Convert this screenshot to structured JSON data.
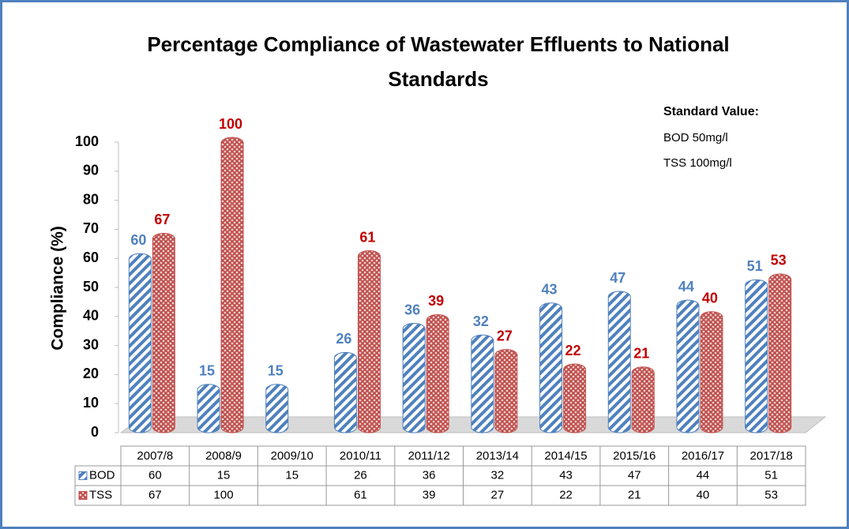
{
  "chart_data": {
    "type": "bar",
    "title": "Percentage Compliance of Wastewater Effluents to National Standards",
    "y_label": "Compliance (%)",
    "annotations": [
      "Standard Value:",
      "BOD 50mg/l",
      "TSS   100mg/l"
    ],
    "categories": [
      "2007/8",
      "2008/9",
      "2009/10",
      "2010/11",
      "2011/12",
      "2013/14",
      "2014/15",
      "2015/16",
      "2016/17",
      "2017/18"
    ],
    "series": [
      {
        "name": "BOD",
        "color": "#4f81bd",
        "label_color": "#4f81bd",
        "values": [
          60,
          15,
          15,
          26,
          36,
          32,
          43,
          47,
          44,
          51
        ]
      },
      {
        "name": "TSS",
        "color": "#c0504d",
        "label_color": "#c00000",
        "values": [
          67,
          100,
          null,
          61,
          39,
          27,
          22,
          21,
          40,
          53
        ]
      }
    ],
    "ylim": [
      0,
      100
    ],
    "yticks": [
      0,
      10,
      20,
      30,
      40,
      50,
      60,
      70,
      80,
      90,
      100
    ],
    "data_table": true
  }
}
